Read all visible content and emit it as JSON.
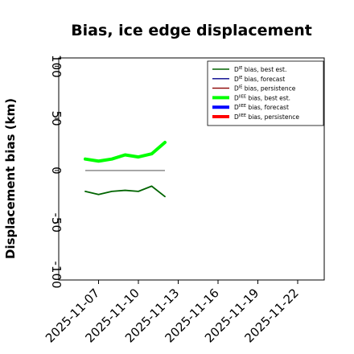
{
  "chart_data": {
    "type": "line",
    "title": "Bias, ice edge displacement",
    "xlabel": "",
    "ylabel": "Displacement bias (km)",
    "xlim": [
      "2025-11-04",
      "2025-11-24"
    ],
    "ylim": [
      -105,
      108
    ],
    "grid": false,
    "legend_position": "top-right",
    "xticks": [
      "2025-11-07",
      "2025-11-10",
      "2025-11-13",
      "2025-11-16",
      "2025-11-19",
      "2025-11-22"
    ],
    "highlighted_xtick": "2025-11-13",
    "highlight_color": "#228b22",
    "yticks": [
      -100,
      -50,
      0,
      50,
      100
    ],
    "x": [
      "2025-11-06",
      "2025-11-07",
      "2025-11-08",
      "2025-11-09",
      "2025-11-10",
      "2025-11-11",
      "2025-11-12"
    ],
    "series": [
      {
        "name": "D^IE bias, best est.",
        "label_main": "D",
        "label_sup": "IE",
        "label_rest": " bias, best est.",
        "color": "#006400",
        "style": "thin",
        "values": [
          -20,
          -23,
          -20,
          -19,
          -20,
          -15,
          -25
        ]
      },
      {
        "name": "D^IE bias, forecast",
        "label_main": "D",
        "label_sup": "IE",
        "label_rest": " bias, forecast",
        "color": "#00008b",
        "style": "thin",
        "values": [
          null,
          null,
          null,
          null,
          null,
          null,
          null
        ]
      },
      {
        "name": "D^IE bias, persistence",
        "label_main": "D",
        "label_sup": "IE",
        "label_rest": " bias, persistence",
        "color": "#8b0000",
        "style": "thin",
        "values": [
          null,
          null,
          null,
          null,
          null,
          null,
          null
        ]
      },
      {
        "name": "D^IIEE bias, best est.",
        "label_main": "D",
        "label_sup": "IIEE",
        "label_rest": " bias, best est.",
        "color": "#00ff00",
        "style": "thick",
        "values": [
          11,
          9,
          11,
          15,
          13,
          16,
          27
        ]
      },
      {
        "name": "D^IIEE bias, forecast",
        "label_main": "D",
        "label_sup": "IIEE",
        "label_rest": " bias, forecast",
        "color": "#0000ff",
        "style": "thick",
        "values": [
          null,
          null,
          null,
          null,
          null,
          null,
          null
        ]
      },
      {
        "name": "D^IIEE bias, persistence",
        "label_main": "D",
        "label_sup": "IIEE",
        "label_rest": " bias, persistence",
        "color": "#ff0000",
        "style": "thick",
        "values": [
          null,
          null,
          null,
          null,
          null,
          null,
          null
        ]
      }
    ],
    "reference_line": {
      "y": 0,
      "x_start": "2025-11-06",
      "x_end": "2025-11-12",
      "color": "#808080"
    }
  }
}
